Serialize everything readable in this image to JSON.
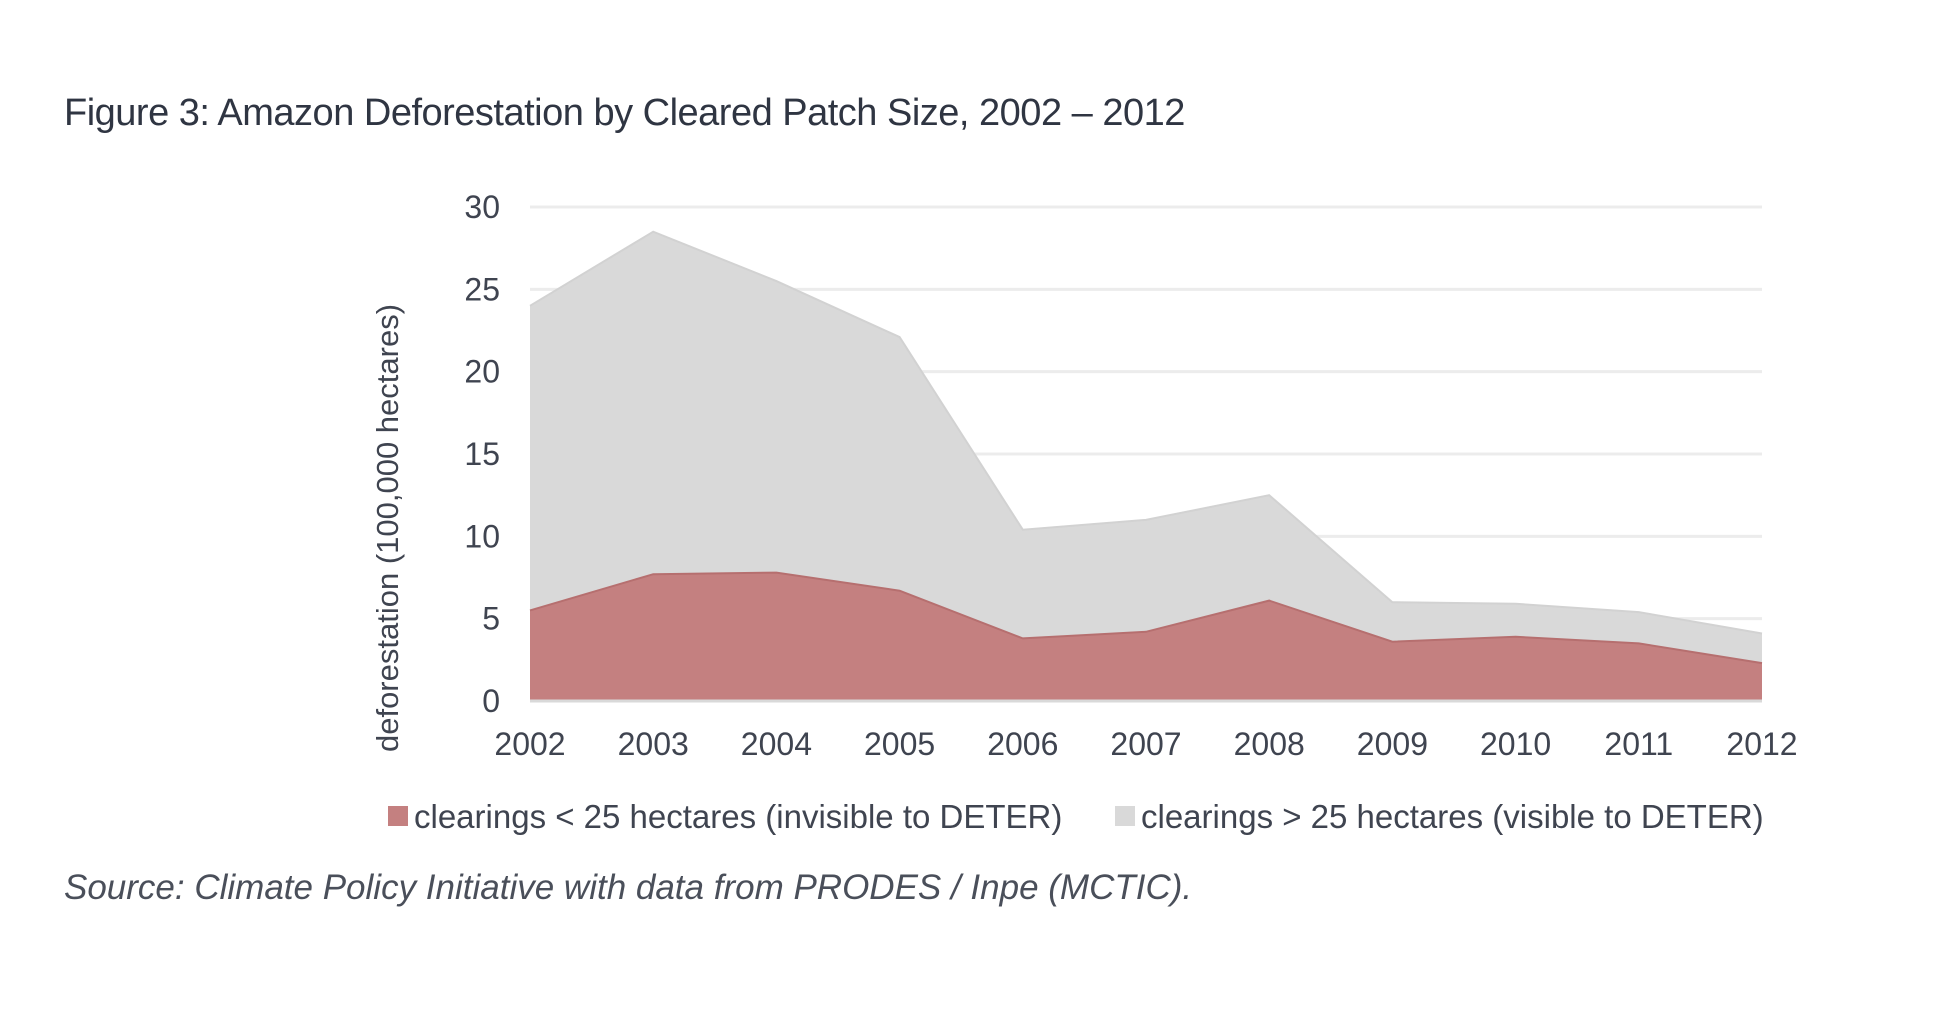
{
  "title": "Figure 3: Amazon Deforestation by Cleared Patch Size, 2002 – 2012",
  "source": "Source: Climate Policy Initiative with data from PRODES / Inpe (MCTIC).",
  "chart_data": {
    "type": "area",
    "stacked": false,
    "x": [
      2002,
      2003,
      2004,
      2005,
      2006,
      2007,
      2008,
      2009,
      2010,
      2011,
      2012
    ],
    "ylabel": "deforestation (100,000 hectares)",
    "xlabel": "",
    "ylim": [
      0,
      30
    ],
    "yticks": [
      0,
      5,
      10,
      15,
      20,
      25,
      30
    ],
    "grid": true,
    "legend_position": "bottom",
    "series": [
      {
        "name": "clearings > 25 hectares (visible to DETER)",
        "color": "#d9d9d9",
        "values": [
          24.0,
          28.5,
          25.5,
          22.1,
          10.4,
          11.0,
          12.5,
          6.0,
          5.9,
          5.4,
          4.1
        ]
      },
      {
        "name": "clearings < 25 hectares (invisible to DETER)",
        "color": "#c48080",
        "values": [
          5.5,
          7.7,
          7.8,
          6.7,
          3.8,
          4.2,
          6.1,
          3.6,
          3.9,
          3.5,
          2.3
        ]
      }
    ],
    "legend": [
      {
        "label": "clearings < 25 hectares (invisible to DETER)",
        "color": "#c48080"
      },
      {
        "label": "clearings > 25 hectares (visible to DETER)",
        "color": "#d9d9d9"
      }
    ]
  }
}
